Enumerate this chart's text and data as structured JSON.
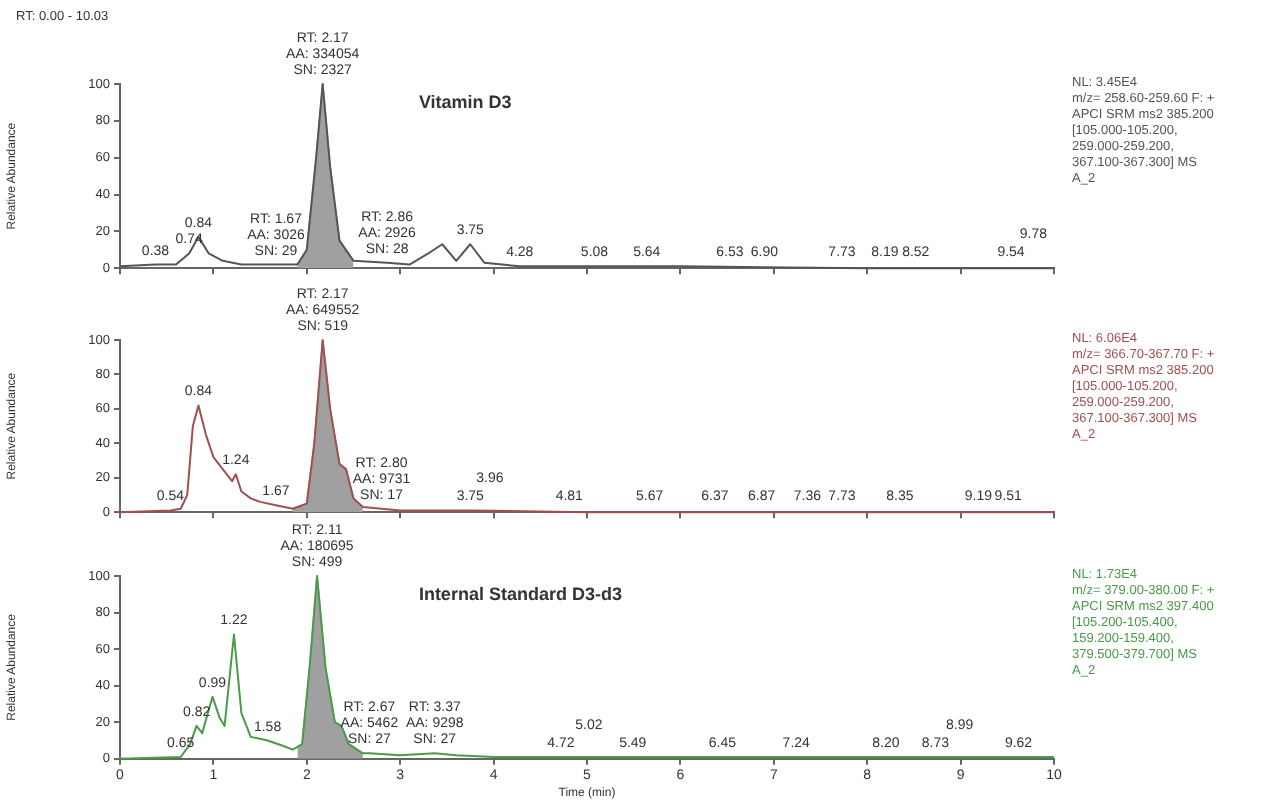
{
  "chart_data": [
    {
      "type": "line",
      "title": "Vitamin D3",
      "subtitle": "RT: 0.00 - 10.03",
      "ylabel": "Relative Abundance",
      "xlim": [
        0,
        10
      ],
      "xticks": [
        0,
        1,
        2,
        3,
        4,
        5,
        6,
        7,
        8,
        9,
        10
      ],
      "ylim": [
        0,
        100
      ],
      "yticks": [
        0,
        20,
        40,
        60,
        80,
        100
      ],
      "grid": false,
      "legend": false,
      "marker": "none",
      "tick_labels": "y",
      "series": [
        {
          "color": "#555555",
          "x": [
            0,
            0.38,
            0.6,
            0.74,
            0.84,
            0.95,
            1.1,
            1.3,
            1.67,
            1.9,
            2.0,
            2.1,
            2.17,
            2.25,
            2.35,
            2.5,
            2.86,
            3.1,
            3.3,
            3.45,
            3.6,
            3.75,
            3.9,
            4.28,
            5,
            6,
            8,
            10
          ],
          "values": [
            1,
            2,
            2,
            8,
            17,
            8,
            4,
            2,
            2,
            2,
            10,
            60,
            100,
            55,
            15,
            4,
            3,
            2,
            8,
            13,
            4,
            13,
            3,
            1,
            1,
            1,
            0,
            0
          ]
        },
        {
          "type": "area",
          "color": "#a0a0a0",
          "x": [
            1.9,
            2.0,
            2.1,
            2.17,
            2.25,
            2.35,
            2.5
          ],
          "values": [
            2,
            10,
            60,
            100,
            55,
            15,
            4
          ]
        }
      ],
      "annotations": [
        {
          "text": "RT: 2.17\nAA: 334054\nSN: 2327",
          "x": 2.17,
          "y": 100
        },
        {
          "text": "0.38",
          "x": 0.38,
          "y": 2
        },
        {
          "text": "0.74",
          "x": 0.74,
          "y": 8
        },
        {
          "text": "0.84",
          "x": 0.84,
          "y": 17
        },
        {
          "text": "RT: 1.67\nAA: 3026\nSN: 29",
          "x": 1.67,
          "y": 2
        },
        {
          "text": "RT: 2.86\nAA: 2926\nSN: 28",
          "x": 2.86,
          "y": 3
        },
        {
          "text": "3.75",
          "x": 3.75,
          "y": 13
        },
        {
          "text": "4.28",
          "x": 4.28,
          "y": 1
        },
        {
          "text": "5.08",
          "x": 5.08,
          "y": 1
        },
        {
          "text": "5.64",
          "x": 5.64,
          "y": 1
        },
        {
          "text": "6.53",
          "x": 6.53,
          "y": 1
        },
        {
          "text": "6.90",
          "x": 6.9,
          "y": 1
        },
        {
          "text": "7.73",
          "x": 7.73,
          "y": 1
        },
        {
          "text": "8.19",
          "x": 8.19,
          "y": 1
        },
        {
          "text": "8.52",
          "x": 8.52,
          "y": 1
        },
        {
          "text": "9.54",
          "x": 9.54,
          "y": 1
        },
        {
          "text": "9.78",
          "x": 9.78,
          "y": 1
        },
        "NL: 3.45E4",
        "m/z= 258.60-259.60 F: +",
        "APCI SRM ms2 385.200",
        "[105.000-105.200,",
        "259.000-259.200,",
        "367.100-367.300] MS",
        "A_2"
      ]
    },
    {
      "type": "line",
      "ylabel": "Relative Abundance",
      "xlim": [
        0,
        10
      ],
      "xticks": [
        0,
        1,
        2,
        3,
        4,
        5,
        6,
        7,
        8,
        9,
        10
      ],
      "ylim": [
        0,
        100
      ],
      "yticks": [
        0,
        20,
        40,
        60,
        80,
        100
      ],
      "grid": false,
      "legend": false,
      "marker": "none",
      "tick_labels": "y",
      "series": [
        {
          "color": "#a05050",
          "x": [
            0,
            0.54,
            0.65,
            0.72,
            0.78,
            0.84,
            0.92,
            1.0,
            1.1,
            1.2,
            1.24,
            1.3,
            1.4,
            1.5,
            1.67,
            1.85,
            2.0,
            2.08,
            2.17,
            2.25,
            2.35,
            2.42,
            2.5,
            2.6,
            2.8,
            3.0,
            3.75,
            5,
            10
          ],
          "values": [
            0,
            1,
            2,
            10,
            50,
            62,
            45,
            32,
            25,
            18,
            22,
            12,
            8,
            6,
            4,
            2,
            5,
            40,
            100,
            60,
            28,
            25,
            8,
            3,
            2,
            1,
            1,
            0,
            0
          ]
        },
        {
          "type": "area",
          "color": "#a0a0a0",
          "x": [
            1.85,
            2.0,
            2.08,
            2.17,
            2.25,
            2.35,
            2.42,
            2.5,
            2.6
          ],
          "values": [
            2,
            5,
            40,
            100,
            60,
            28,
            25,
            8,
            3
          ]
        }
      ],
      "annotations": [
        {
          "text": "RT: 2.17\nAA: 649552\nSN: 519",
          "x": 2.17,
          "y": 100
        },
        {
          "text": "0.54",
          "x": 0.54,
          "y": 1
        },
        {
          "text": "0.84",
          "x": 0.84,
          "y": 62
        },
        {
          "text": "1.24",
          "x": 1.24,
          "y": 22
        },
        {
          "text": "1.67",
          "x": 1.67,
          "y": 4
        },
        {
          "text": "RT: 2.80\nAA: 9731\nSN: 17",
          "x": 2.8,
          "y": 2
        },
        {
          "text": "3.75",
          "x": 3.75,
          "y": 1
        },
        {
          "text": "3.96",
          "x": 3.96,
          "y": 1
        },
        {
          "text": "4.81",
          "x": 4.81,
          "y": 1
        },
        {
          "text": "5.67",
          "x": 5.67,
          "y": 1
        },
        {
          "text": "6.37",
          "x": 6.37,
          "y": 1
        },
        {
          "text": "6.87",
          "x": 6.87,
          "y": 1
        },
        {
          "text": "7.36",
          "x": 7.36,
          "y": 1
        },
        {
          "text": "7.73",
          "x": 7.73,
          "y": 1
        },
        {
          "text": "8.35",
          "x": 8.35,
          "y": 1
        },
        {
          "text": "9.19",
          "x": 9.19,
          "y": 1
        },
        {
          "text": "9.51",
          "x": 9.51,
          "y": 1
        },
        "NL: 6.06E4",
        "m/z= 366.70-367.70 F: +",
        "APCI SRM ms2 385.200",
        "[105.000-105.200,",
        "259.000-259.200,",
        "367.100-367.300] MS",
        "A_2"
      ]
    },
    {
      "type": "line",
      "title": "Internal Standard D3-d3",
      "xlabel": "Time (min)",
      "ylabel": "Relative Abundance",
      "xlim": [
        0,
        10
      ],
      "xticks": [
        0,
        1,
        2,
        3,
        4,
        5,
        6,
        7,
        8,
        9,
        10
      ],
      "ylim": [
        0,
        100
      ],
      "yticks": [
        0,
        20,
        40,
        60,
        80,
        100
      ],
      "grid": false,
      "legend": false,
      "marker": "none",
      "series": [
        {
          "color": "#4a9a4a",
          "x": [
            0,
            0.65,
            0.75,
            0.82,
            0.88,
            0.99,
            1.07,
            1.12,
            1.22,
            1.3,
            1.4,
            1.58,
            1.75,
            1.85,
            1.95,
            2.03,
            2.11,
            2.2,
            2.3,
            2.37,
            2.45,
            2.6,
            2.67,
            3,
            3.37,
            3.6,
            4,
            5,
            10
          ],
          "values": [
            0,
            1,
            8,
            18,
            14,
            34,
            22,
            18,
            68,
            25,
            12,
            10,
            7,
            5,
            8,
            50,
            100,
            50,
            20,
            18,
            8,
            3,
            3,
            2,
            3,
            2,
            1,
            1,
            1
          ]
        },
        {
          "type": "area",
          "color": "#a0a0a0",
          "x": [
            1.9,
            1.95,
            2.03,
            2.11,
            2.2,
            2.3,
            2.37,
            2.45,
            2.6
          ],
          "values": [
            6,
            8,
            50,
            100,
            50,
            20,
            18,
            8,
            3
          ]
        }
      ],
      "annotations": [
        {
          "text": "RT: 2.11\nAA: 180695\nSN: 499",
          "x": 2.11,
          "y": 100
        },
        {
          "text": "0.65",
          "x": 0.65,
          "y": 1
        },
        {
          "text": "0.82",
          "x": 0.82,
          "y": 18
        },
        {
          "text": "0.99",
          "x": 0.99,
          "y": 34
        },
        {
          "text": "1.22",
          "x": 1.22,
          "y": 68
        },
        {
          "text": "1.58",
          "x": 1.58,
          "y": 10
        },
        {
          "text": "RT: 2.67\nAA: 5462\nSN: 27",
          "x": 2.67,
          "y": 3
        },
        {
          "text": "RT: 3.37\nAA: 9298\nSN: 27",
          "x": 3.37,
          "y": 3
        },
        {
          "text": "4.72",
          "x": 4.72,
          "y": 1
        },
        {
          "text": "5.02",
          "x": 5.02,
          "y": 1
        },
        {
          "text": "5.49",
          "x": 5.49,
          "y": 1
        },
        {
          "text": "6.45",
          "x": 6.45,
          "y": 1
        },
        {
          "text": "7.24",
          "x": 7.24,
          "y": 1
        },
        {
          "text": "8.20",
          "x": 8.2,
          "y": 1
        },
        {
          "text": "8.73",
          "x": 8.73,
          "y": 1
        },
        {
          "text": "8.99",
          "x": 8.99,
          "y": 1
        },
        {
          "text": "9.62",
          "x": 9.62,
          "y": 1
        },
        "NL: 1.73E4",
        "m/z= 379.00-380.00 F: +",
        "APCI SRM ms2 397.400",
        "[105.200-105.400,",
        "159.200-159.400,",
        "379.500-379.700] MS",
        "A_2"
      ]
    }
  ]
}
